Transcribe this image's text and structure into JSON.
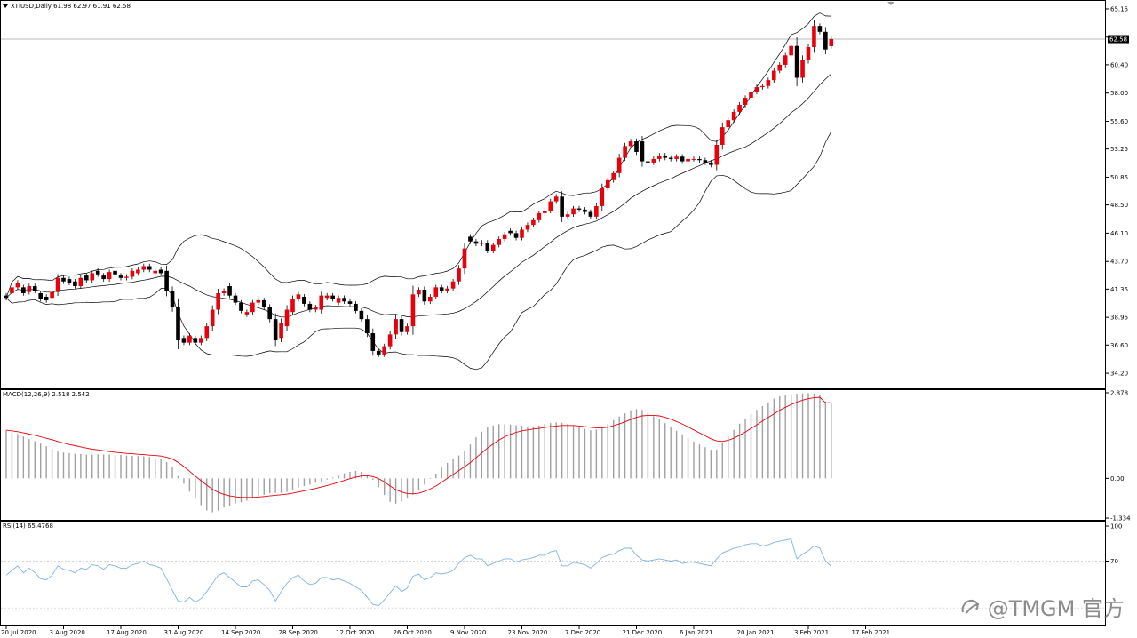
{
  "instrument": {
    "header": "XTIUSD,Daily  61.98 62.97 61.91 62.58",
    "last_price_label": "62.58"
  },
  "watermark": "@TMGM 官方",
  "colors": {
    "bull": "#e8000b",
    "bear": "#000000",
    "bands": "#000000",
    "signal": "#e8000b",
    "histogram": "#a0a0a0",
    "rsi": "#7fb3e6",
    "pane_border": "#000000",
    "price_line": "#a0a0a0",
    "level_line": "#c8c8c8"
  },
  "chart_data": [
    {
      "type": "candlestick",
      "title": "XTIUSD,Daily 61.98 62.97 61.91 62.58",
      "ylim": [
        33.0,
        65.6
      ],
      "y_ticks": [
        "65.15",
        "62.75",
        "60.40",
        "58.00",
        "55.60",
        "53.25",
        "50.85",
        "48.50",
        "46.10",
        "43.70",
        "41.35",
        "38.95",
        "36.60",
        "34.20"
      ],
      "x_ticks": [
        "20 Jul 2020",
        "3 Aug 2020",
        "17 Aug 2020",
        "31 Aug 2020",
        "14 Sep 2020",
        "28 Sep 2020",
        "12 Oct 2020",
        "26 Oct 2020",
        "9 Nov 2020",
        "23 Nov 2020",
        "7 Dec 2020",
        "21 Dec 2020",
        "6 Jan 2021",
        "20 Jan 2021",
        "3 Feb 2021",
        "17 Feb 2021"
      ],
      "x_tick_positions": [
        0,
        10,
        20,
        30,
        40,
        50,
        60,
        70,
        80,
        90,
        100,
        110,
        120,
        130,
        140,
        150
      ],
      "last_price": 62.58,
      "closes": [
        40.6,
        41.5,
        41.9,
        41.0,
        41.6,
        41.2,
        40.5,
        40.4,
        41.1,
        42.3,
        42.0,
        41.9,
        41.6,
        42.3,
        42.1,
        42.7,
        42.6,
        42.2,
        42.8,
        42.6,
        42.3,
        42.4,
        42.9,
        43.0,
        43.3,
        43.0,
        42.9,
        42.7,
        41.2,
        39.8,
        37.0,
        36.8,
        37.4,
        36.8,
        37.2,
        38.2,
        39.6,
        41.0,
        41.2,
        40.8,
        40.2,
        39.5,
        39.4,
        40.2,
        40.4,
        39.8,
        38.8,
        37.0,
        38.5,
        39.6,
        40.5,
        40.9,
        40.1,
        39.6,
        39.8,
        40.8,
        40.8,
        40.5,
        40.6,
        40.3,
        40.1,
        39.5,
        38.8,
        37.6,
        36.1,
        35.8,
        36.5,
        37.5,
        38.8,
        37.7,
        38.2,
        40.9,
        41.3,
        40.3,
        40.7,
        41.5,
        41.2,
        41.4,
        42.0,
        43.1,
        44.8,
        45.4,
        45.2,
        45.3,
        44.6,
        45.1,
        45.6,
        46.0,
        46.1,
        45.7,
        46.4,
        46.8,
        47.2,
        47.8,
        48.0,
        48.8,
        49.2,
        47.5,
        47.7,
        48.2,
        48.1,
        47.9,
        47.5,
        48.4,
        49.9,
        50.6,
        51.2,
        52.5,
        53.5,
        53.9,
        53.0,
        52.2,
        52.1,
        52.4,
        52.7,
        52.5,
        52.4,
        52.6,
        52.2,
        52.4,
        52.4,
        52.3,
        52.1,
        51.9,
        53.6,
        55.1,
        55.7,
        56.4,
        57.0,
        57.6,
        58.1,
        58.5,
        58.6,
        59.1,
        59.9,
        60.4,
        61.2,
        62.0,
        59.3,
        60.8,
        61.9,
        63.7,
        63.2,
        61.7,
        62.58
      ],
      "opens": [
        40.8,
        41.0,
        41.5,
        41.5,
        41.1,
        41.6,
        41.0,
        40.7,
        40.6,
        41.1,
        42.3,
        42.2,
        42.0,
        41.6,
        42.5,
        42.1,
        42.9,
        42.5,
        42.2,
        42.9,
        42.5,
        42.3,
        42.4,
        42.7,
        43.0,
        43.3,
        42.7,
        43.0,
        42.9,
        41.2,
        39.8,
        37.2,
        36.8,
        37.2,
        36.8,
        37.2,
        38.2,
        39.6,
        41.0,
        41.6,
        40.8,
        40.2,
        39.2,
        39.4,
        40.2,
        40.4,
        39.8,
        38.8,
        37.2,
        38.2,
        39.4,
        40.5,
        40.7,
        40.1,
        39.6,
        39.6,
        40.6,
        40.8,
        40.2,
        40.6,
        40.3,
        40.1,
        39.5,
        38.8,
        37.6,
        36.1,
        35.8,
        36.5,
        37.5,
        38.8,
        37.7,
        38.2,
        40.9,
        41.3,
        40.3,
        40.7,
        41.5,
        41.2,
        41.4,
        42.0,
        43.1,
        45.8,
        45.4,
        45.2,
        45.3,
        44.6,
        45.1,
        45.6,
        46.3,
        46.1,
        45.7,
        46.4,
        46.8,
        47.2,
        47.8,
        48.0,
        48.8,
        49.2,
        47.5,
        47.7,
        48.2,
        48.1,
        47.9,
        47.5,
        48.4,
        49.9,
        50.6,
        51.2,
        52.5,
        53.5,
        53.9,
        53.9,
        52.2,
        52.1,
        52.4,
        52.7,
        52.5,
        52.4,
        52.6,
        52.2,
        52.4,
        52.4,
        52.3,
        52.1,
        51.9,
        53.6,
        55.1,
        55.7,
        56.4,
        57.0,
        57.6,
        58.1,
        58.5,
        58.6,
        59.1,
        59.9,
        60.4,
        61.2,
        62.0,
        59.3,
        60.8,
        61.9,
        63.7,
        63.2,
        61.98
      ]
    },
    {
      "type": "line",
      "title": "MACD(12,26,9) 2.518 2.542",
      "ylim": [
        -1.334,
        2.878
      ],
      "y_ticks": [
        "2.878",
        "0.00",
        "-1.334"
      ],
      "series": [
        {
          "name": "MACD(12,26,9)",
          "style": "histogram",
          "values": [
            1.62,
            1.55,
            1.49,
            1.41,
            1.32,
            1.25,
            1.17,
            1.08,
            0.99,
            0.91,
            0.87,
            0.85,
            0.83,
            0.82,
            0.8,
            0.8,
            0.81,
            0.8,
            0.8,
            0.79,
            0.79,
            0.77,
            0.76,
            0.75,
            0.74,
            0.72,
            0.69,
            0.65,
            0.55,
            0.38,
            0.08,
            -0.18,
            -0.45,
            -0.69,
            -0.9,
            -1.08,
            -1.14,
            -1.09,
            -0.98,
            -0.92,
            -0.85,
            -0.8,
            -0.75,
            -0.68,
            -0.6,
            -0.55,
            -0.5,
            -0.49,
            -0.49,
            -0.45,
            -0.38,
            -0.31,
            -0.26,
            -0.21,
            -0.15,
            -0.1,
            -0.04,
            0.03,
            0.1,
            0.17,
            0.22,
            0.25,
            0.22,
            0.13,
            -0.05,
            -0.3,
            -0.56,
            -0.79,
            -0.85,
            -0.78,
            -0.68,
            -0.55,
            -0.4,
            -0.21,
            -0.02,
            0.16,
            0.36,
            0.52,
            0.65,
            0.77,
            0.94,
            1.14,
            1.38,
            1.57,
            1.71,
            1.78,
            1.82,
            1.82,
            1.81,
            1.79,
            1.77,
            1.75,
            1.75,
            1.78,
            1.83,
            1.86,
            1.88,
            1.87,
            1.83,
            1.77,
            1.72,
            1.67,
            1.62,
            1.64,
            1.7,
            1.82,
            1.96,
            2.08,
            2.19,
            2.29,
            2.33,
            2.3,
            2.21,
            2.09,
            1.98,
            1.86,
            1.73,
            1.6,
            1.48,
            1.36,
            1.24,
            1.14,
            1.05,
            0.96,
            0.97,
            1.18,
            1.41,
            1.63,
            1.84,
            2.01,
            2.16,
            2.3,
            2.43,
            2.56,
            2.68,
            2.76,
            2.79,
            2.83,
            2.85,
            2.86,
            2.87,
            2.85,
            2.82,
            2.58,
            2.518
          ]
        },
        {
          "name": "Signal",
          "style": "line",
          "values": [
            1.62,
            1.6,
            1.57,
            1.53,
            1.49,
            1.45,
            1.4,
            1.35,
            1.3,
            1.24,
            1.19,
            1.14,
            1.1,
            1.06,
            1.02,
            0.98,
            0.96,
            0.93,
            0.9,
            0.88,
            0.86,
            0.84,
            0.83,
            0.81,
            0.8,
            0.78,
            0.77,
            0.75,
            0.71,
            0.65,
            0.54,
            0.4,
            0.24,
            0.08,
            -0.08,
            -0.23,
            -0.37,
            -0.47,
            -0.54,
            -0.59,
            -0.62,
            -0.64,
            -0.64,
            -0.64,
            -0.63,
            -0.61,
            -0.59,
            -0.57,
            -0.55,
            -0.53,
            -0.5,
            -0.46,
            -0.42,
            -0.38,
            -0.34,
            -0.29,
            -0.24,
            -0.19,
            -0.13,
            -0.07,
            -0.01,
            0.04,
            0.08,
            0.09,
            0.06,
            -0.01,
            -0.12,
            -0.26,
            -0.38,
            -0.46,
            -0.51,
            -0.52,
            -0.5,
            -0.44,
            -0.36,
            -0.26,
            -0.13,
            0.0,
            0.13,
            0.26,
            0.39,
            0.53,
            0.69,
            0.86,
            1.02,
            1.16,
            1.29,
            1.4,
            1.48,
            1.55,
            1.6,
            1.63,
            1.66,
            1.68,
            1.71,
            1.74,
            1.76,
            1.78,
            1.78,
            1.78,
            1.76,
            1.74,
            1.72,
            1.7,
            1.7,
            1.72,
            1.77,
            1.83,
            1.9,
            1.98,
            2.05,
            2.1,
            2.12,
            2.12,
            2.1,
            2.05,
            1.99,
            1.91,
            1.83,
            1.73,
            1.63,
            1.53,
            1.43,
            1.33,
            1.26,
            1.24,
            1.28,
            1.35,
            1.45,
            1.56,
            1.68,
            1.8,
            1.93,
            2.05,
            2.17,
            2.29,
            2.39,
            2.48,
            2.56,
            2.63,
            2.68,
            2.71,
            2.73,
            2.54,
            2.542
          ]
        }
      ]
    },
    {
      "type": "line",
      "title": "RSI(14) 65.4768",
      "ylim": [
        18,
        100
      ],
      "y_ticks": [
        "100",
        "70"
      ],
      "levels": [
        70,
        30
      ],
      "series": [
        {
          "name": "RSI(14)",
          "values": [
            58,
            62,
            66,
            60,
            64,
            60,
            55,
            54,
            58,
            66,
            63,
            62,
            60,
            64,
            63,
            67,
            66,
            63,
            67,
            66,
            64,
            64,
            67,
            68,
            70,
            67,
            66,
            64,
            55,
            45,
            36,
            35,
            39,
            35,
            38,
            44,
            51,
            58,
            60,
            56,
            52,
            48,
            48,
            53,
            54,
            50,
            45,
            36,
            44,
            51,
            56,
            58,
            53,
            50,
            51,
            56,
            56,
            54,
            55,
            53,
            51,
            48,
            45,
            39,
            33,
            32,
            37,
            43,
            49,
            44,
            47,
            57,
            59,
            54,
            56,
            60,
            59,
            60,
            62,
            68,
            73,
            75,
            72,
            72,
            66,
            68,
            70,
            72,
            72,
            69,
            71,
            72,
            73,
            75,
            75,
            78,
            79,
            66,
            66,
            69,
            68,
            67,
            64,
            68,
            73,
            75,
            76,
            79,
            81,
            81,
            75,
            71,
            70,
            71,
            72,
            71,
            70,
            71,
            68,
            69,
            69,
            68,
            67,
            66,
            72,
            77,
            79,
            81,
            82,
            84,
            85,
            85,
            83,
            84,
            86,
            87,
            88,
            89,
            72,
            76,
            79,
            83,
            81,
            70,
            65.4768
          ]
        }
      ]
    }
  ]
}
